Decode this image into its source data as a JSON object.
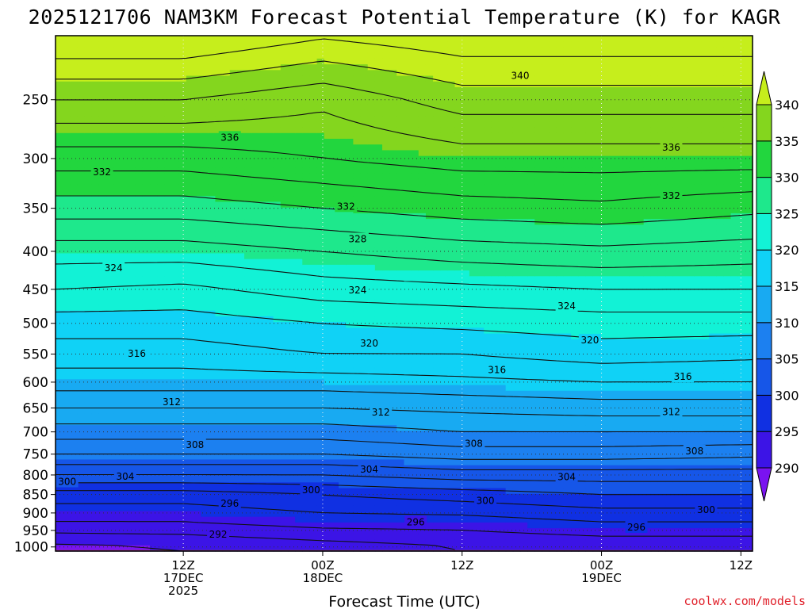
{
  "chart_data": {
    "type": "heatmap",
    "title": "2025121706 NAM3KM Forecast Potential Temperature (K) for KAGR",
    "xlabel": "Forecast Time (UTC)",
    "ylabel": "",
    "credit": "coolwx.com/models",
    "y_axis": {
      "unit": "hPa",
      "scale": "pressure",
      "range": [
        1013,
        205
      ],
      "ticks": [
        250,
        300,
        350,
        400,
        450,
        500,
        550,
        600,
        650,
        700,
        750,
        800,
        850,
        900,
        950,
        1000
      ]
    },
    "x_axis": {
      "unit": "forecast hour",
      "range": [
        -5,
        55
      ],
      "ticks": [
        {
          "hour": 6,
          "lines": [
            "12Z",
            "17DEC",
            "2025"
          ]
        },
        {
          "hour": 18,
          "lines": [
            "00Z",
            "18DEC"
          ]
        },
        {
          "hour": 30,
          "lines": [
            "12Z"
          ]
        },
        {
          "hour": 42,
          "lines": [
            "00Z",
            "19DEC"
          ]
        },
        {
          "hour": 54,
          "lines": [
            "12Z"
          ]
        }
      ]
    },
    "colorbar": {
      "levels": [
        290,
        295,
        300,
        305,
        310,
        315,
        320,
        325,
        330,
        335,
        340
      ],
      "labels": [
        "290",
        "295",
        "300",
        "305",
        "310",
        "315",
        "320",
        "325",
        "330",
        "335",
        "340"
      ],
      "band_colors": [
        "#7a13f0",
        "#3c14e6",
        "#1030e2",
        "#1656e8",
        "#1c80f0",
        "#18aaf2",
        "#10d2f6",
        "#12f2d6",
        "#1ee88c",
        "#22d63e",
        "#84d61e",
        "#c6ee1c"
      ],
      "extend": "both"
    },
    "terrain_color": "#a0522d",
    "contour_interval": 2,
    "contour_levels": [
      290,
      292,
      294,
      296,
      298,
      300,
      302,
      304,
      306,
      308,
      310,
      312,
      314,
      316,
      318,
      320,
      322,
      324,
      326,
      328,
      330,
      332,
      334,
      336,
      338,
      340,
      342
    ],
    "profiles": [
      {
        "hour": -5,
        "theta": [
          {
            "p": 1000,
            "v": 289.5
          },
          {
            "p": 925,
            "v": 294
          },
          {
            "p": 850,
            "v": 297
          },
          {
            "p": 800,
            "v": 302
          },
          {
            "p": 750,
            "v": 306
          },
          {
            "p": 700,
            "v": 309
          },
          {
            "p": 650,
            "v": 312
          },
          {
            "p": 600,
            "v": 315
          },
          {
            "p": 550,
            "v": 317
          },
          {
            "p": 500,
            "v": 319
          },
          {
            "p": 450,
            "v": 322
          },
          {
            "p": 400,
            "v": 325
          },
          {
            "p": 350,
            "v": 329
          },
          {
            "p": 300,
            "v": 333
          },
          {
            "p": 250,
            "v": 338
          },
          {
            "p": 200,
            "v": 345
          }
        ]
      },
      {
        "hour": 6,
        "theta": [
          {
            "p": 1000,
            "v": 290
          },
          {
            "p": 925,
            "v": 294
          },
          {
            "p": 850,
            "v": 297
          },
          {
            "p": 800,
            "v": 302
          },
          {
            "p": 750,
            "v": 306
          },
          {
            "p": 700,
            "v": 309
          },
          {
            "p": 650,
            "v": 312
          },
          {
            "p": 600,
            "v": 315
          },
          {
            "p": 550,
            "v": 317
          },
          {
            "p": 500,
            "v": 319
          },
          {
            "p": 450,
            "v": 321.5
          },
          {
            "p": 400,
            "v": 325
          },
          {
            "p": 350,
            "v": 329
          },
          {
            "p": 300,
            "v": 333
          },
          {
            "p": 250,
            "v": 338
          },
          {
            "p": 200,
            "v": 345
          }
        ]
      },
      {
        "hour": 18,
        "theta": [
          {
            "p": 1000,
            "v": 291
          },
          {
            "p": 925,
            "v": 295
          },
          {
            "p": 850,
            "v": 298
          },
          {
            "p": 800,
            "v": 302
          },
          {
            "p": 750,
            "v": 306
          },
          {
            "p": 700,
            "v": 309
          },
          {
            "p": 650,
            "v": 312
          },
          {
            "p": 600,
            "v": 315
          },
          {
            "p": 550,
            "v": 318
          },
          {
            "p": 500,
            "v": 320
          },
          {
            "p": 450,
            "v": 323
          },
          {
            "p": 400,
            "v": 326
          },
          {
            "p": 350,
            "v": 330
          },
          {
            "p": 300,
            "v": 334
          },
          {
            "p": 250,
            "v": 336.5
          },
          {
            "p": 200,
            "v": 343
          }
        ]
      },
      {
        "hour": 30,
        "theta": [
          {
            "p": 1000,
            "v": 292
          },
          {
            "p": 925,
            "v": 295
          },
          {
            "p": 850,
            "v": 299
          },
          {
            "p": 800,
            "v": 303
          },
          {
            "p": 750,
            "v": 307
          },
          {
            "p": 700,
            "v": 310
          },
          {
            "p": 650,
            "v": 312.5
          },
          {
            "p": 600,
            "v": 315.5
          },
          {
            "p": 550,
            "v": 318
          },
          {
            "p": 500,
            "v": 320.5
          },
          {
            "p": 450,
            "v": 323.5
          },
          {
            "p": 400,
            "v": 327
          },
          {
            "p": 350,
            "v": 331
          },
          {
            "p": 300,
            "v": 335
          },
          {
            "p": 250,
            "v": 339
          },
          {
            "p": 200,
            "v": 344
          }
        ]
      },
      {
        "hour": 42,
        "theta": [
          {
            "p": 1000,
            "v": 292.5
          },
          {
            "p": 925,
            "v": 296
          },
          {
            "p": 850,
            "v": 300
          },
          {
            "p": 800,
            "v": 303
          },
          {
            "p": 750,
            "v": 307
          },
          {
            "p": 700,
            "v": 310
          },
          {
            "p": 650,
            "v": 313
          },
          {
            "p": 600,
            "v": 316
          },
          {
            "p": 550,
            "v": 319
          },
          {
            "p": 500,
            "v": 321
          },
          {
            "p": 450,
            "v": 324
          },
          {
            "p": 400,
            "v": 327.5
          },
          {
            "p": 350,
            "v": 331.5
          },
          {
            "p": 300,
            "v": 335
          },
          {
            "p": 250,
            "v": 339
          },
          {
            "p": 200,
            "v": 344
          }
        ]
      },
      {
        "hour": 55,
        "theta": [
          {
            "p": 1000,
            "v": 292.5
          },
          {
            "p": 925,
            "v": 296
          },
          {
            "p": 850,
            "v": 300
          },
          {
            "p": 800,
            "v": 303
          },
          {
            "p": 750,
            "v": 306.5
          },
          {
            "p": 700,
            "v": 310
          },
          {
            "p": 650,
            "v": 313
          },
          {
            "p": 600,
            "v": 316
          },
          {
            "p": 550,
            "v": 318.5
          },
          {
            "p": 500,
            "v": 321
          },
          {
            "p": 450,
            "v": 324
          },
          {
            "p": 400,
            "v": 327
          },
          {
            "p": 350,
            "v": 330.5
          },
          {
            "p": 300,
            "v": 335
          },
          {
            "p": 250,
            "v": 339
          },
          {
            "p": 200,
            "v": 344
          }
        ]
      }
    ],
    "contour_labels": [
      {
        "text": "340",
        "hour": 35,
        "p": 232
      },
      {
        "text": "336",
        "hour": 10,
        "p": 281
      },
      {
        "text": "336",
        "hour": 48,
        "p": 290
      },
      {
        "text": "332",
        "hour": -1,
        "p": 313
      },
      {
        "text": "332",
        "hour": 20,
        "p": 348
      },
      {
        "text": "332",
        "hour": 48,
        "p": 337
      },
      {
        "text": "328",
        "hour": 21,
        "p": 385
      },
      {
        "text": "324",
        "hour": 0,
        "p": 421
      },
      {
        "text": "324",
        "hour": 21,
        "p": 451
      },
      {
        "text": "324",
        "hour": 39,
        "p": 474
      },
      {
        "text": "320",
        "hour": 22,
        "p": 532
      },
      {
        "text": "320",
        "hour": 41,
        "p": 527
      },
      {
        "text": "316",
        "hour": 2,
        "p": 549
      },
      {
        "text": "316",
        "hour": 33,
        "p": 578
      },
      {
        "text": "316",
        "hour": 49,
        "p": 590
      },
      {
        "text": "312",
        "hour": 5,
        "p": 638
      },
      {
        "text": "312",
        "hour": 23,
        "p": 659
      },
      {
        "text": "312",
        "hour": 48,
        "p": 658
      },
      {
        "text": "308",
        "hour": 7,
        "p": 729
      },
      {
        "text": "308",
        "hour": 31,
        "p": 726
      },
      {
        "text": "308",
        "hour": 50,
        "p": 743
      },
      {
        "text": "304",
        "hour": 1,
        "p": 804
      },
      {
        "text": "304",
        "hour": 22,
        "p": 786
      },
      {
        "text": "304",
        "hour": 39,
        "p": 805
      },
      {
        "text": "300",
        "hour": -4,
        "p": 817
      },
      {
        "text": "300",
        "hour": 17,
        "p": 838
      },
      {
        "text": "300",
        "hour": 32,
        "p": 867
      },
      {
        "text": "300",
        "hour": 51,
        "p": 891
      },
      {
        "text": "296",
        "hour": 10,
        "p": 874
      },
      {
        "text": "296",
        "hour": 26,
        "p": 926
      },
      {
        "text": "296",
        "hour": 45,
        "p": 941
      },
      {
        "text": "292",
        "hour": 9,
        "p": 962
      }
    ]
  }
}
